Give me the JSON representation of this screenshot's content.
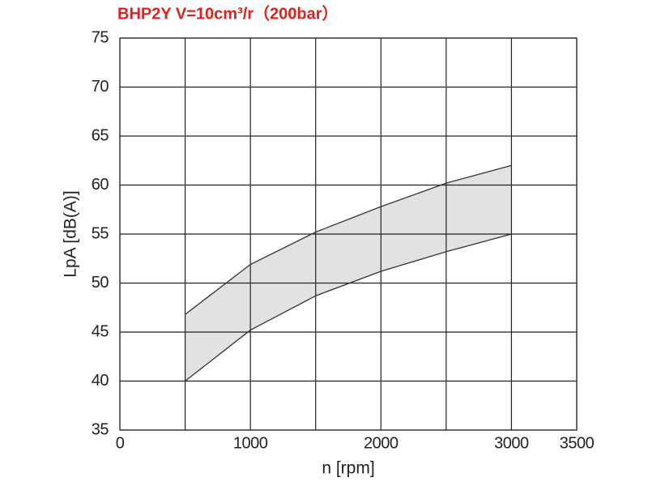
{
  "chart_data": {
    "type": "band",
    "title": "BHP2Y V=10cm³/r（200bar）",
    "title_color": "#e3211c",
    "xlabel": "n [rpm]",
    "ylabel": "LpA [dB(A)]",
    "x": [
      500,
      1000,
      1500,
      2000,
      2500,
      3000
    ],
    "series": [
      {
        "color": "#333333",
        "values": [
          40,
          45.2,
          48.7,
          51.2,
          53.2,
          55
        ]
      },
      {
        "color": "#333333",
        "values": [
          46.8,
          51.9,
          55.2,
          57.8,
          60.2,
          62
        ]
      }
    ],
    "fill": "#e2e2e2",
    "xlim": [
      0,
      3500
    ],
    "xticks": [
      0,
      1000,
      2000,
      3000,
      3500
    ],
    "ylim": [
      35,
      75
    ],
    "yticks": [
      35,
      40,
      45,
      50,
      55,
      60,
      65,
      70,
      75
    ],
    "xgrid_step": 500,
    "grid": true
  }
}
